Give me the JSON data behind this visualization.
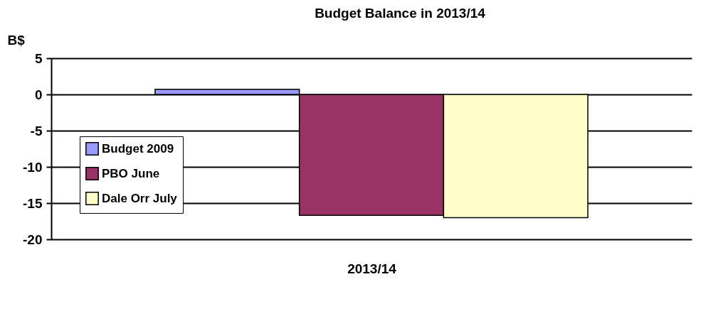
{
  "chart_data": {
    "type": "bar",
    "title": "Budget Balance in 2013/14",
    "xlabel": "2013/14",
    "ylabel": "B$",
    "categories": [
      null
    ],
    "series": [
      {
        "name": "Budget 2009",
        "color": "#9999ff",
        "values": [
          0.7
        ]
      },
      {
        "name": "PBO June",
        "color": "#993366",
        "values": [
          -16.7
        ]
      },
      {
        "name": "Dale Orr July",
        "color": "#ffffcc",
        "values": [
          -17.0
        ]
      }
    ],
    "ylim": [
      -20,
      5
    ],
    "yticks": [
      -20,
      -15,
      -10,
      -5,
      0,
      5
    ],
    "grid": "y",
    "legend": "left"
  }
}
